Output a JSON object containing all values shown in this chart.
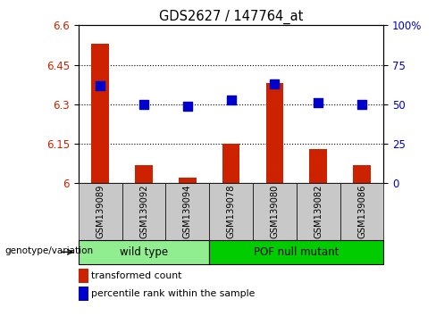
{
  "title": "GDS2627 / 147764_at",
  "samples": [
    "GSM139089",
    "GSM139092",
    "GSM139094",
    "GSM139078",
    "GSM139080",
    "GSM139082",
    "GSM139086"
  ],
  "transformed_count": [
    6.53,
    6.07,
    6.02,
    6.15,
    6.38,
    6.13,
    6.07
  ],
  "percentile_rank": [
    62,
    50,
    49,
    53,
    63,
    51,
    50
  ],
  "ylim_left": [
    6.0,
    6.6
  ],
  "ylim_right": [
    0,
    100
  ],
  "yticks_left": [
    6.0,
    6.15,
    6.3,
    6.45,
    6.6
  ],
  "yticks_right": [
    0,
    25,
    50,
    75,
    100
  ],
  "ytick_labels_left": [
    "6",
    "6.15",
    "6.3",
    "6.45",
    "6.6"
  ],
  "ytick_labels_right": [
    "0",
    "25",
    "50",
    "75",
    "100%"
  ],
  "groups": [
    {
      "label": "wild type",
      "indices": [
        0,
        1,
        2
      ],
      "color": "#90EE90"
    },
    {
      "label": "POF null mutant",
      "indices": [
        3,
        4,
        5,
        6
      ],
      "color": "#00CC00"
    }
  ],
  "bar_color": "#CC2200",
  "dot_color": "#0000CC",
  "bar_width": 0.4,
  "dot_size": 50,
  "legend_items": [
    "transformed count",
    "percentile rank within the sample"
  ],
  "genotype_label": "genotype/variation"
}
